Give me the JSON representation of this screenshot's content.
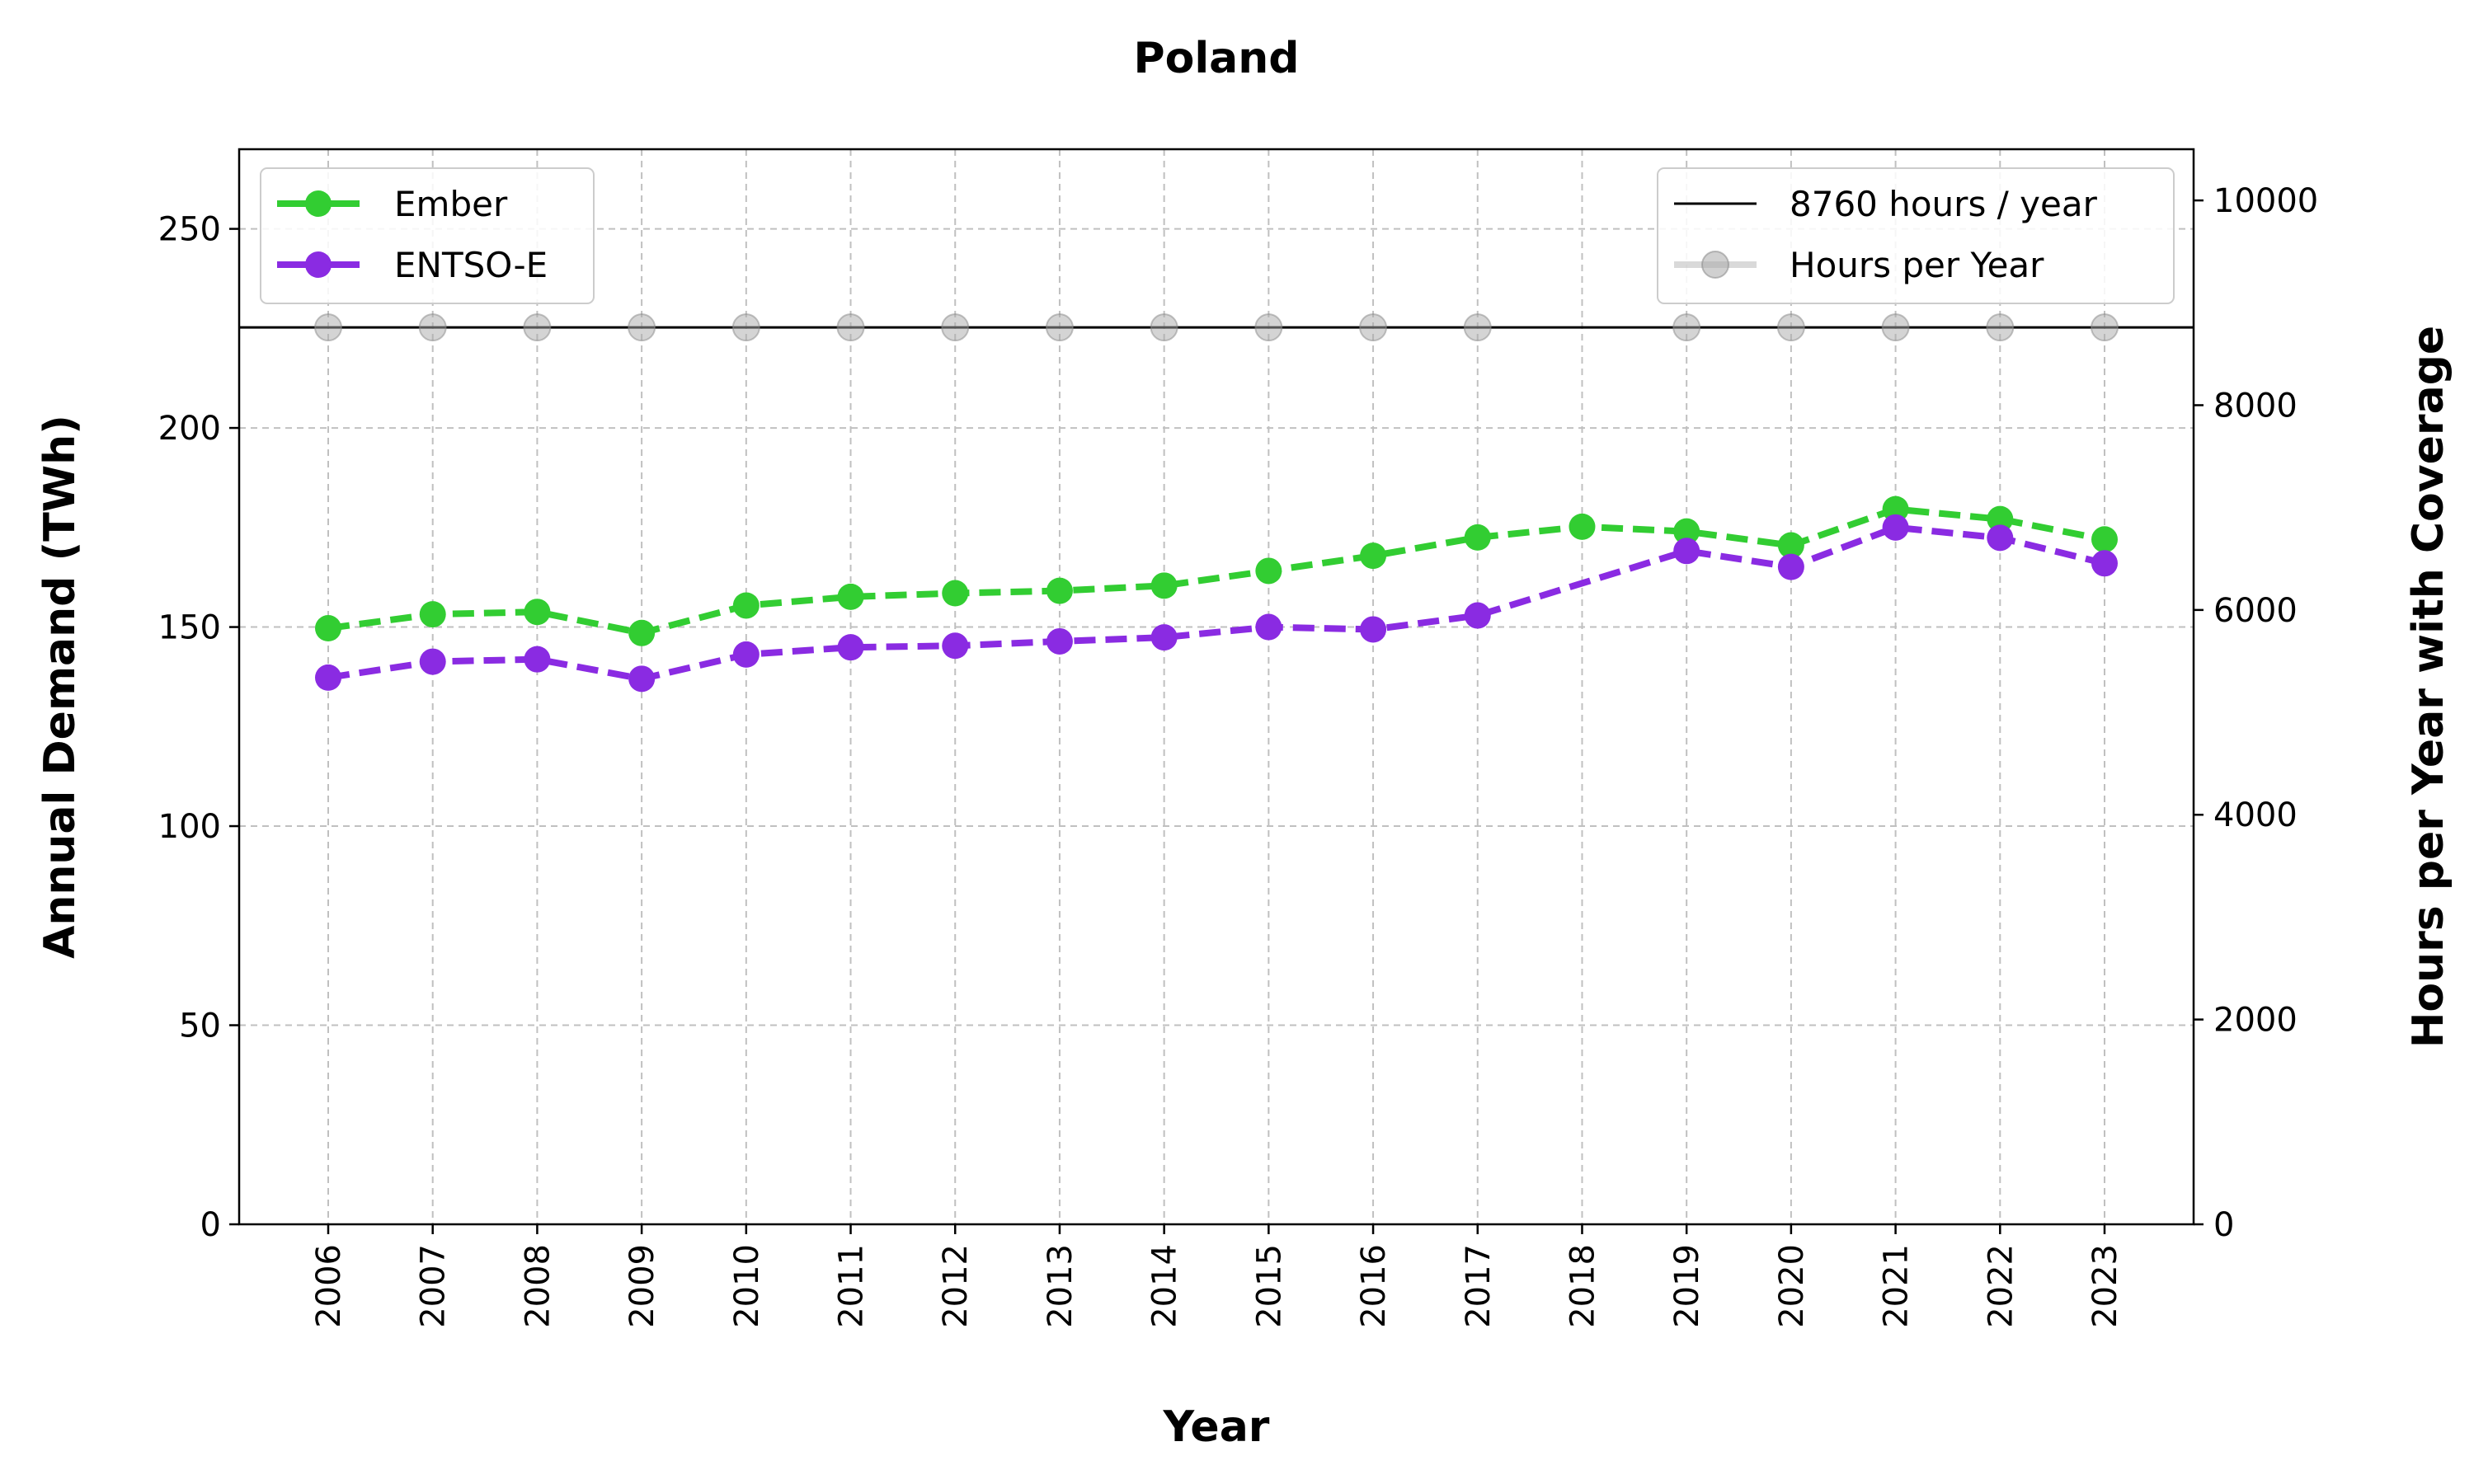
{
  "chart_data": {
    "type": "line",
    "title": "Poland",
    "xlabel": "Year",
    "ylabel": "Annual Demand (TWh)",
    "y2label": "Hours per Year with Coverage",
    "categories": [
      "2006",
      "2007",
      "2008",
      "2009",
      "2010",
      "2011",
      "2012",
      "2013",
      "2014",
      "2015",
      "2016",
      "2017",
      "2018",
      "2019",
      "2020",
      "2021",
      "2022",
      "2023"
    ],
    "ylim": [
      0,
      270
    ],
    "yticks": [
      0,
      50,
      100,
      150,
      200,
      250
    ],
    "y2lim": [
      0,
      10500
    ],
    "y2ticks": [
      0,
      2000,
      4000,
      6000,
      8000,
      10000
    ],
    "grid": true,
    "legend_left_position": "top-left",
    "legend_right_position": "top-right",
    "series": [
      {
        "name": "Ember",
        "axis": "left",
        "color": "#32cd32",
        "style": "dashed",
        "values": [
          149.7,
          153.2,
          153.8,
          148.5,
          155.4,
          157.6,
          158.5,
          159.1,
          160.4,
          164.1,
          167.9,
          172.5,
          175.2,
          174.0,
          170.5,
          179.6,
          177.1,
          172.0
        ]
      },
      {
        "name": "ENTSO-E",
        "axis": "left",
        "color": "#8a2be2",
        "style": "dashed",
        "values": [
          137.3,
          141.3,
          141.9,
          137.0,
          143.1,
          144.9,
          145.3,
          146.4,
          147.4,
          150.0,
          149.4,
          152.9,
          null,
          169.1,
          165.1,
          175.0,
          172.4,
          166.0
        ]
      },
      {
        "name": "Hours per Year",
        "axis": "right",
        "color": "#aaaaaa",
        "style": "solid",
        "values": [
          8760,
          8760,
          8760,
          8760,
          8760,
          8760,
          8760,
          8760,
          8760,
          8760,
          8760,
          8760,
          null,
          8760,
          8760,
          8760,
          8760,
          8760
        ]
      }
    ],
    "reference_line": {
      "label": "8760 hours / year",
      "value": 8760,
      "axis": "right",
      "color": "#000000"
    }
  }
}
